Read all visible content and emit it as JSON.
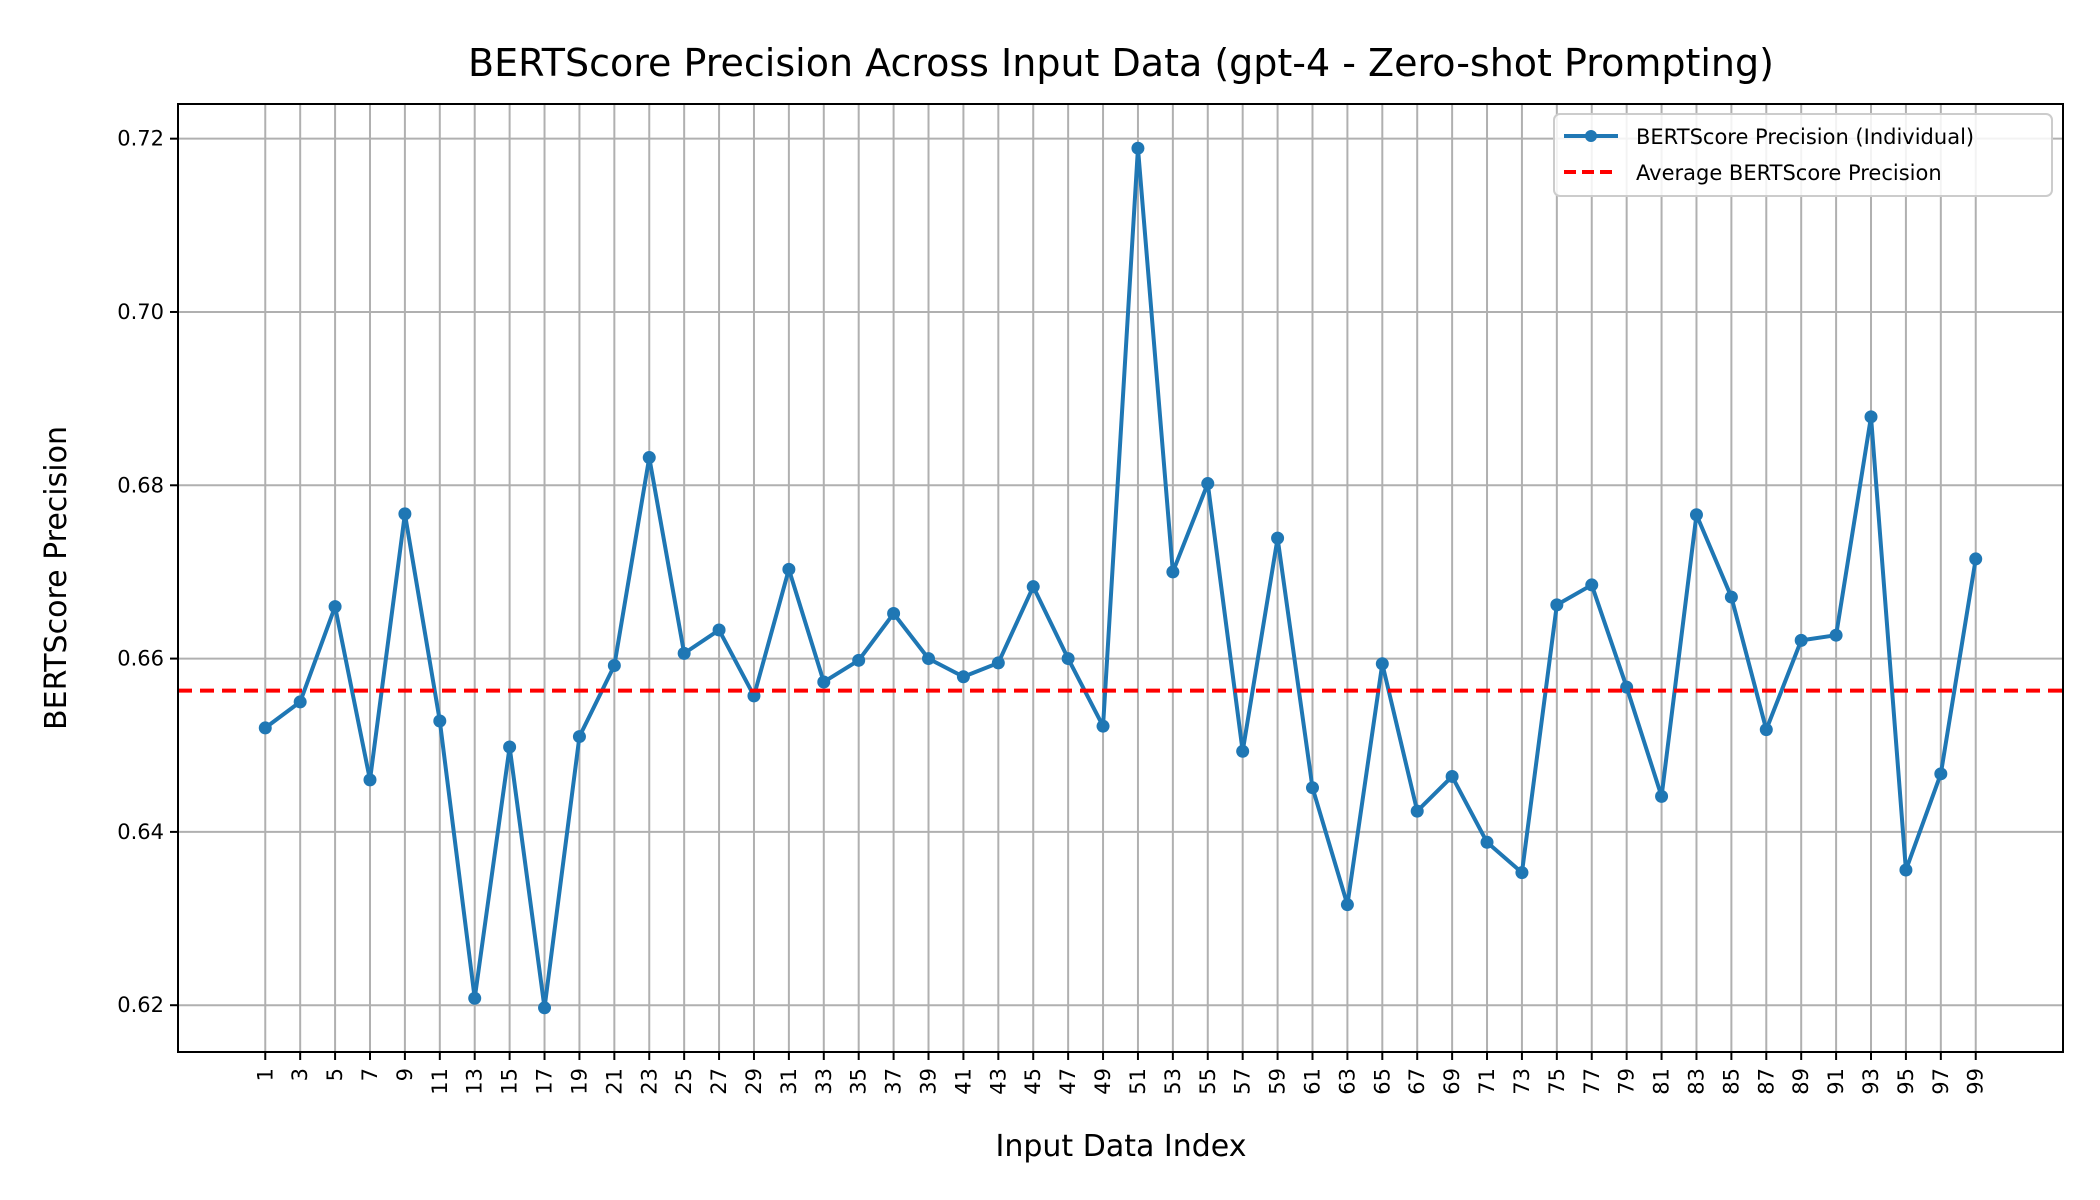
{
  "chart_data": {
    "type": "line",
    "title": "BERTScore Precision Across Input Data (gpt-4 - Zero-shot Prompting)",
    "xlabel": "Input Data Index",
    "ylabel": "BERTScore Precision",
    "xlim": [
      -4,
      104
    ],
    "ylim": [
      0.6146,
      0.724
    ],
    "xticks": [
      1,
      3,
      5,
      7,
      9,
      11,
      13,
      15,
      17,
      19,
      21,
      23,
      25,
      27,
      29,
      31,
      33,
      35,
      37,
      39,
      41,
      43,
      45,
      47,
      49,
      51,
      53,
      55,
      57,
      59,
      61,
      63,
      65,
      67,
      69,
      71,
      73,
      75,
      77,
      79,
      81,
      83,
      85,
      87,
      89,
      91,
      93,
      95,
      97,
      99
    ],
    "yticks": [
      0.62,
      0.64,
      0.66,
      0.68,
      0.7,
      0.72
    ],
    "ytick_labels": [
      "0.62",
      "0.64",
      "0.66",
      "0.68",
      "0.70",
      "0.72"
    ],
    "grid": true,
    "legend_position": "top-right",
    "series": [
      {
        "name": "BERTScore Precision (Individual)",
        "color": "#1f77b4",
        "marker": "circle",
        "x": [
          1,
          3,
          5,
          7,
          9,
          11,
          13,
          15,
          17,
          19,
          21,
          23,
          25,
          27,
          29,
          31,
          33,
          35,
          37,
          39,
          41,
          43,
          45,
          47,
          49,
          51,
          53,
          55,
          57,
          59,
          61,
          63,
          65,
          67,
          69,
          71,
          73,
          75,
          77,
          79,
          81,
          83,
          85,
          87,
          89,
          91,
          93,
          95,
          97,
          99
        ],
        "y": [
          0.652,
          0.655,
          0.666,
          0.646,
          0.6767,
          0.6528,
          0.6208,
          0.6498,
          0.6197,
          0.651,
          0.6592,
          0.6832,
          0.6606,
          0.6633,
          0.6557,
          0.6703,
          0.6573,
          0.6598,
          0.6652,
          0.66,
          0.6579,
          0.6595,
          0.6683,
          0.66,
          0.6522,
          0.7189,
          0.67,
          0.6802,
          0.6493,
          0.6739,
          0.6451,
          0.6316,
          0.6594,
          0.6424,
          0.6464,
          0.6388,
          0.6353,
          0.6662,
          0.6685,
          0.6567,
          0.6441,
          0.6766,
          0.6671,
          0.6518,
          0.6621,
          0.6627,
          0.6879,
          0.6356,
          0.6467,
          0.6715
        ]
      }
    ],
    "reference_lines": [
      {
        "name": "Average BERTScore Precision",
        "y": 0.6563,
        "color": "#ff0000",
        "style": "dashed"
      }
    ]
  }
}
